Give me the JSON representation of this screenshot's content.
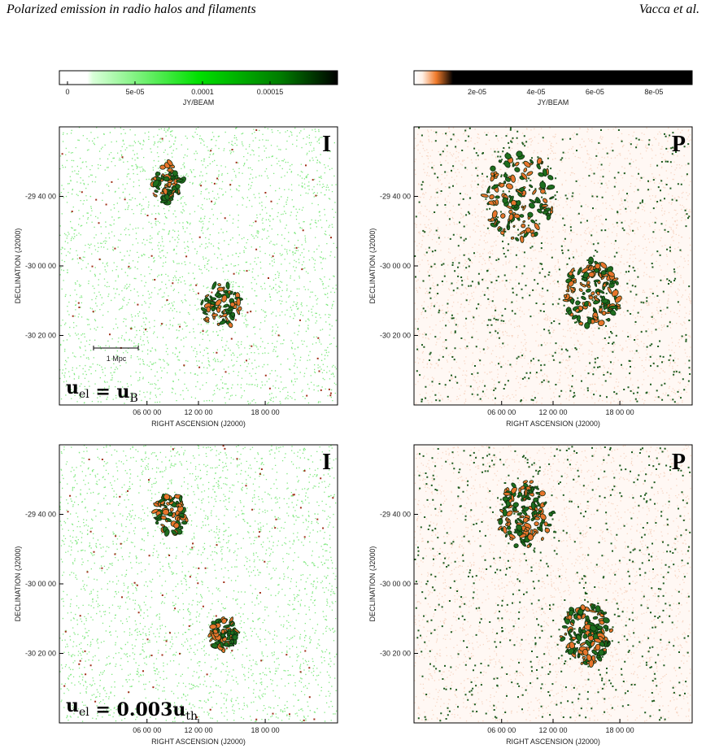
{
  "header": {
    "title": "Polarized emission in radio halos and filaments",
    "author": "Vacca et al."
  },
  "colorbars": [
    {
      "unit": "JY/BEAM",
      "lim": [
        -6e-06,
        0.0002
      ],
      "ticks": [
        {
          "value": 0,
          "label": "0"
        },
        {
          "value": 5e-05,
          "label": "5e-05"
        },
        {
          "value": 0.0001,
          "label": "0.0001"
        },
        {
          "value": 0.00015,
          "label": "0.00015"
        }
      ]
    },
    {
      "unit": "JY/BEAM",
      "lim": [
        -1.4e-06,
        9.3e-05
      ],
      "ticks": [
        {
          "value": 2e-05,
          "label": "2e-05"
        },
        {
          "value": 4e-05,
          "label": "4e-05"
        },
        {
          "value": 6e-05,
          "label": "6e-05"
        },
        {
          "value": 8e-05,
          "label": "8e-05"
        }
      ]
    }
  ],
  "axes": {
    "x_label": "RIGHT ASCENSION  (J2000)",
    "y_label": "DECLINATION  (J2000)",
    "x_ticks": [
      "06 00 00",
      "12 00 00",
      "18 00 00"
    ],
    "y_ticks": [
      "-29 40 00",
      "-30 00 00",
      "-30 20 00"
    ]
  },
  "panels": [
    {
      "label": "I",
      "annotation": [
        {
          "text": "u",
          "sub": "el"
        },
        {
          "text": " = u",
          "sub": "B"
        }
      ],
      "scale_bar": "1 Mpc"
    },
    {
      "label": "P"
    },
    {
      "label": "I",
      "annotation": [
        {
          "text": "u",
          "sub": "el"
        },
        {
          "text": " = 0.003u",
          "sub": "th"
        }
      ]
    },
    {
      "label": "P"
    }
  ]
}
